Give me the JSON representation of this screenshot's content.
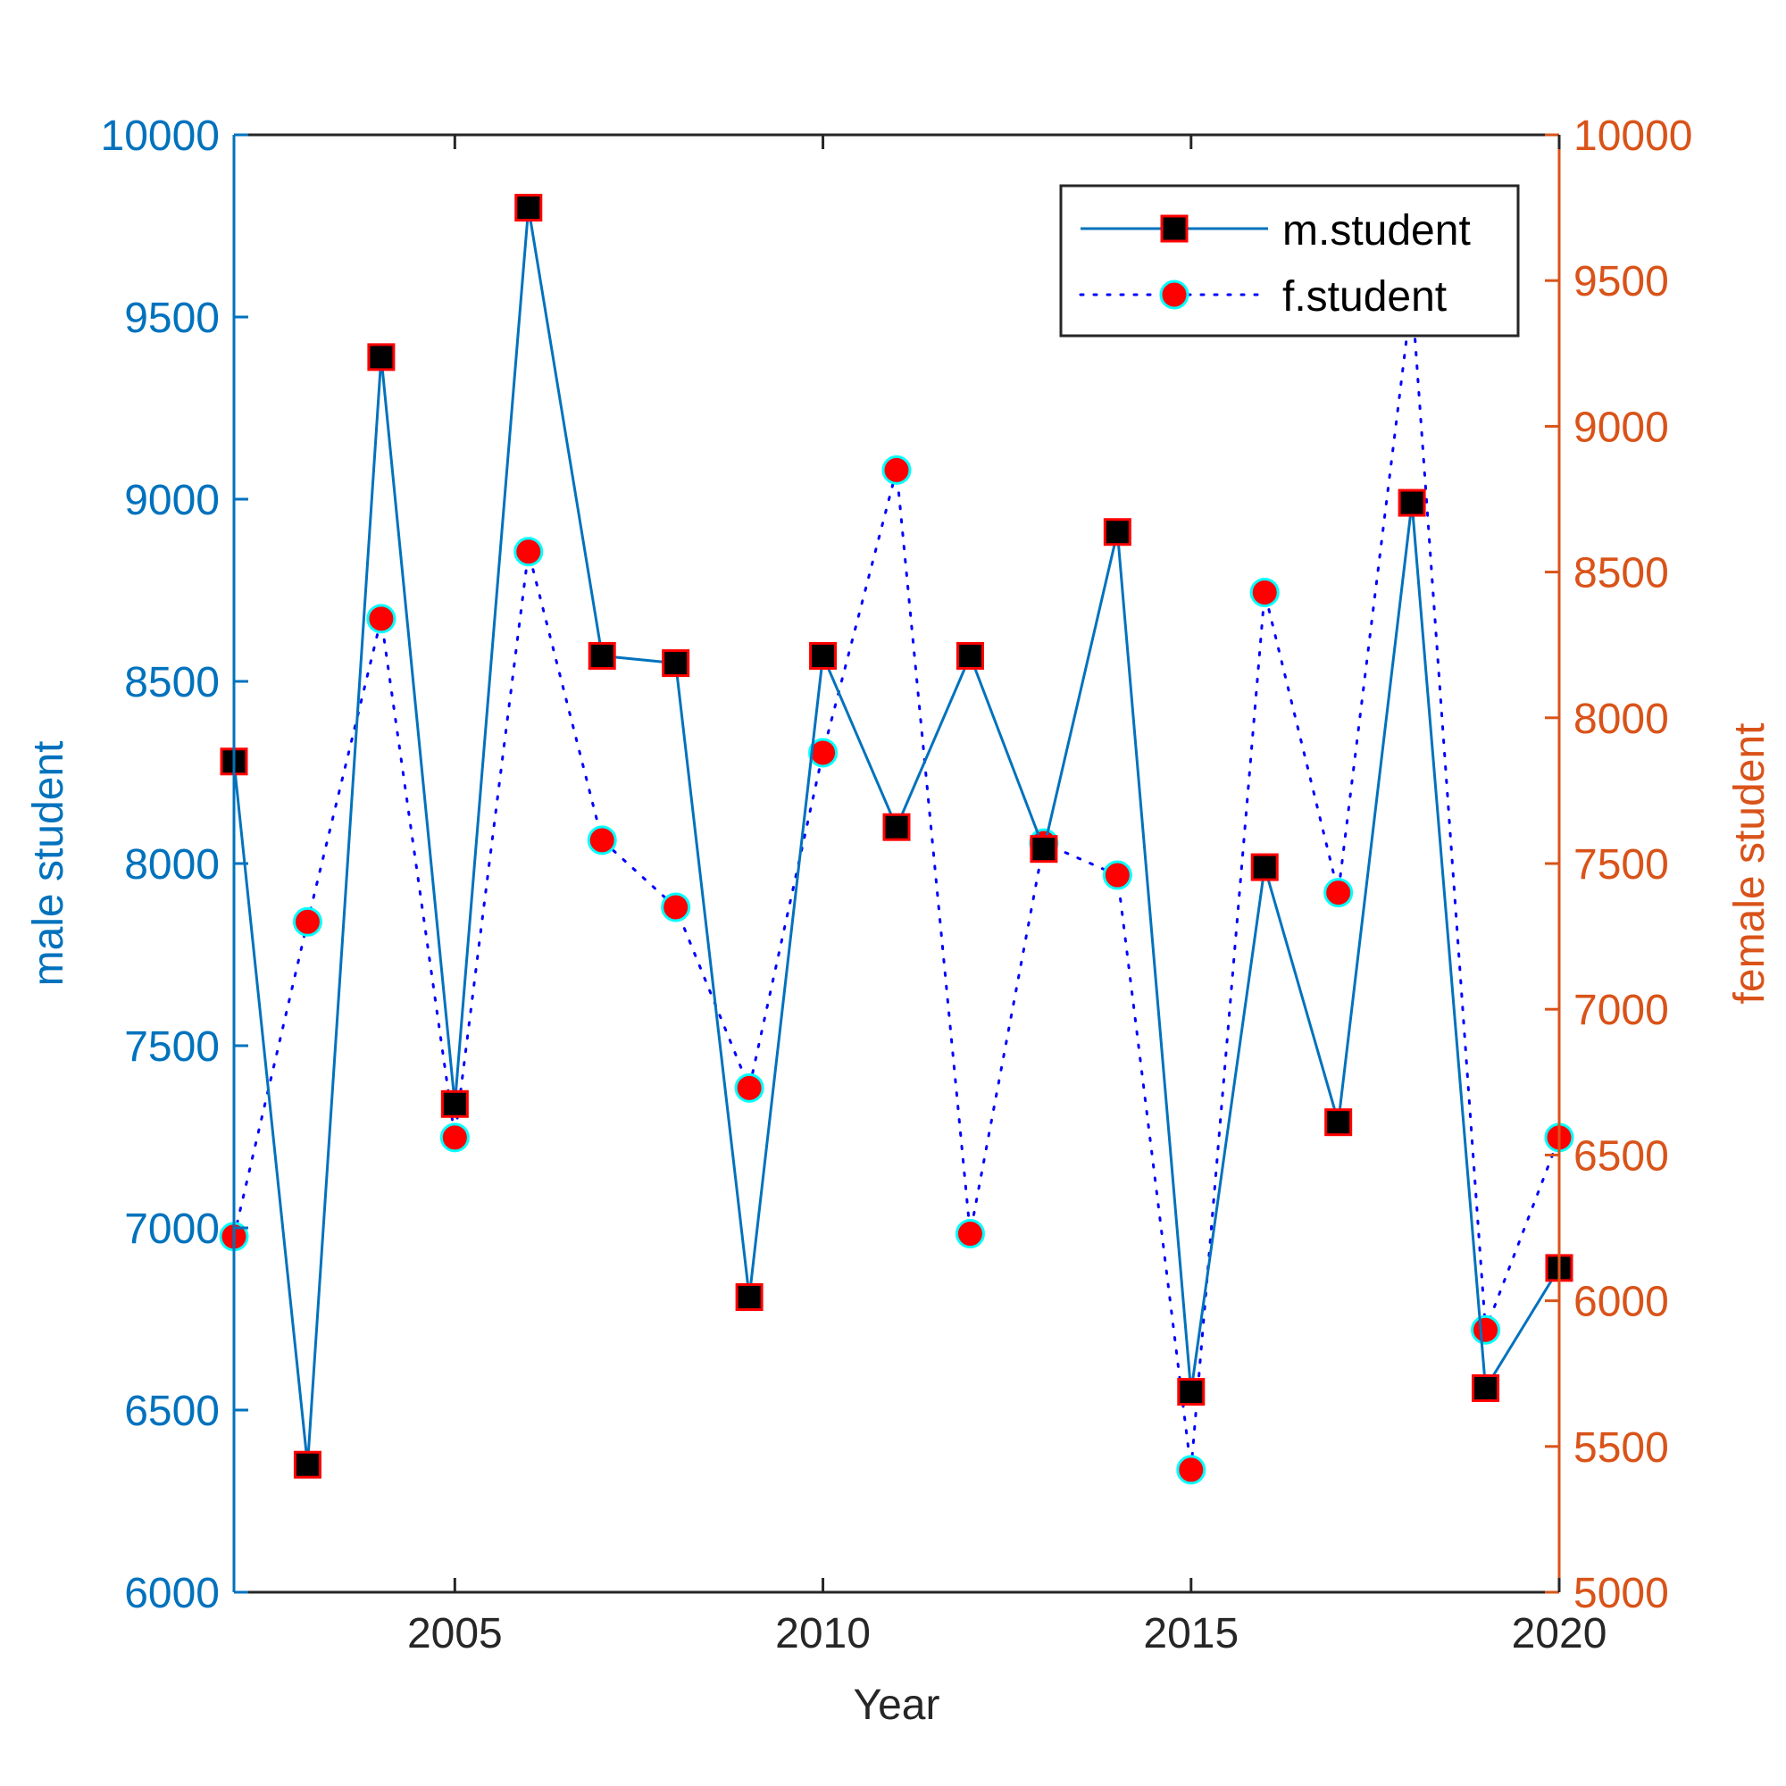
{
  "colors": {
    "left_axis": "#0072BD",
    "right_axis": "#D95319",
    "frame": "#262626",
    "m_line": "#0072BD",
    "m_marker_fill": "#000000",
    "m_marker_edge": "#FF0000",
    "f_line": "#0000FF",
    "f_marker_fill": "#FF0000",
    "f_marker_edge": "#00FFFF"
  },
  "chart_data": {
    "type": "line",
    "xlabel": "Year",
    "ylabel_left": "male student",
    "ylabel_right": "female student",
    "xlim": [
      2002,
      2020
    ],
    "ylim_left": [
      6000,
      10000
    ],
    "ylim_right": [
      5000,
      10000
    ],
    "x_ticks": [
      "2005",
      "2010",
      "2015",
      "2020"
    ],
    "y_ticks_left": [
      "6000",
      "6500",
      "7000",
      "7500",
      "8000",
      "8500",
      "9000",
      "9500",
      "10000"
    ],
    "y_ticks_right": [
      "5000",
      "5500",
      "6000",
      "6500",
      "7000",
      "7500",
      "8000",
      "8500",
      "9000",
      "9500",
      "10000"
    ],
    "grid": false,
    "legend_position": "top-right",
    "x": [
      2002,
      2003,
      2004,
      2005,
      2006,
      2007,
      2008,
      2009,
      2010,
      2011,
      2012,
      2013,
      2014,
      2015,
      2016,
      2017,
      2018,
      2019,
      2020
    ],
    "series": [
      {
        "name": "m.student",
        "axis": "left",
        "line_style": "solid",
        "marker": "square",
        "values": [
          8280,
          6350,
          9390,
          7340,
          9800,
          8570,
          8550,
          6810,
          8570,
          8100,
          8570,
          8040,
          8910,
          6550,
          7990,
          7290,
          8990,
          6560,
          6890
        ]
      },
      {
        "name": "f.student",
        "axis": "right",
        "line_style": "dotted",
        "marker": "circle",
        "values": [
          6220,
          7300,
          8340,
          6560,
          8570,
          7580,
          7350,
          6730,
          7880,
          8850,
          6230,
          7570,
          7460,
          5420,
          8430,
          7400,
          9450,
          5900,
          6560
        ]
      }
    ]
  }
}
